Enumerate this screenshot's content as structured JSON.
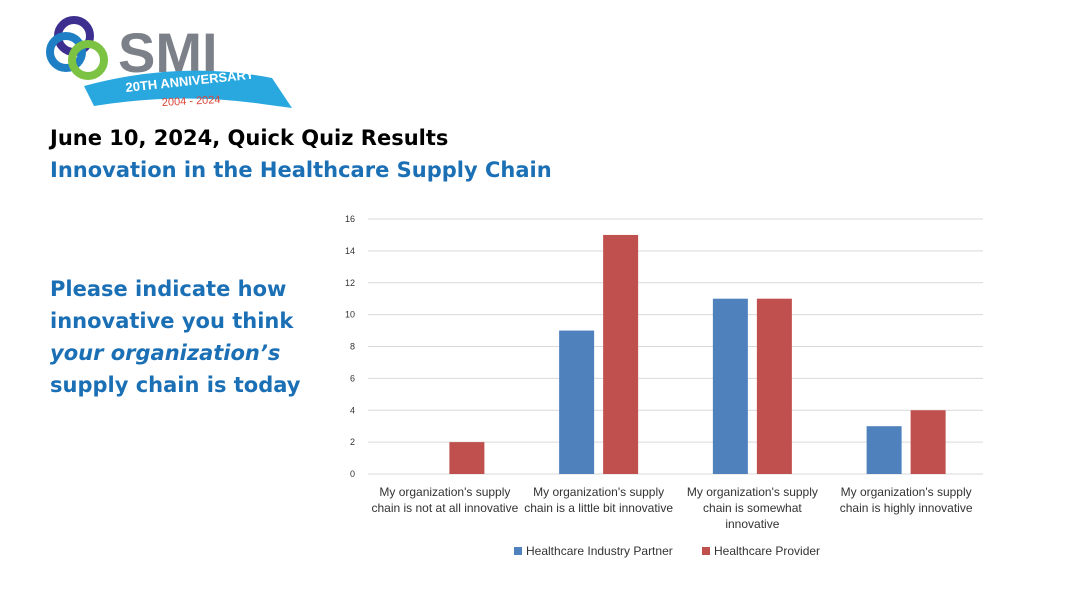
{
  "logo": {
    "name": "SMI",
    "banner": "20TH ANNIVERSARY",
    "years": "2004 - 2024"
  },
  "header": {
    "title": "June 10, 2024, Quick Quiz Results",
    "subtitle": "Innovation in the Healthcare Supply Chain"
  },
  "question": {
    "lines": [
      "Please indicate how",
      "innovative you think",
      "your organization’s",
      "supply chain is today"
    ]
  },
  "chart_data": {
    "type": "bar",
    "categories": [
      "My organization's supply chain is not at all innovative",
      "My organization's supply chain is a little bit innovative",
      "My organization's supply chain is somewhat innovative",
      "My organization's supply chain is highly innovative"
    ],
    "series": [
      {
        "name": "Healthcare Industry Partner",
        "color": "#4f81bd",
        "values": [
          0,
          9,
          11,
          3
        ]
      },
      {
        "name": "Healthcare Provider",
        "color": "#c0504d",
        "values": [
          2,
          15,
          11,
          4
        ]
      }
    ],
    "ylim": [
      0,
      16
    ],
    "yticks": [
      0,
      2,
      4,
      6,
      8,
      10,
      12,
      14,
      16
    ],
    "grid": true,
    "legend": "bottom"
  }
}
